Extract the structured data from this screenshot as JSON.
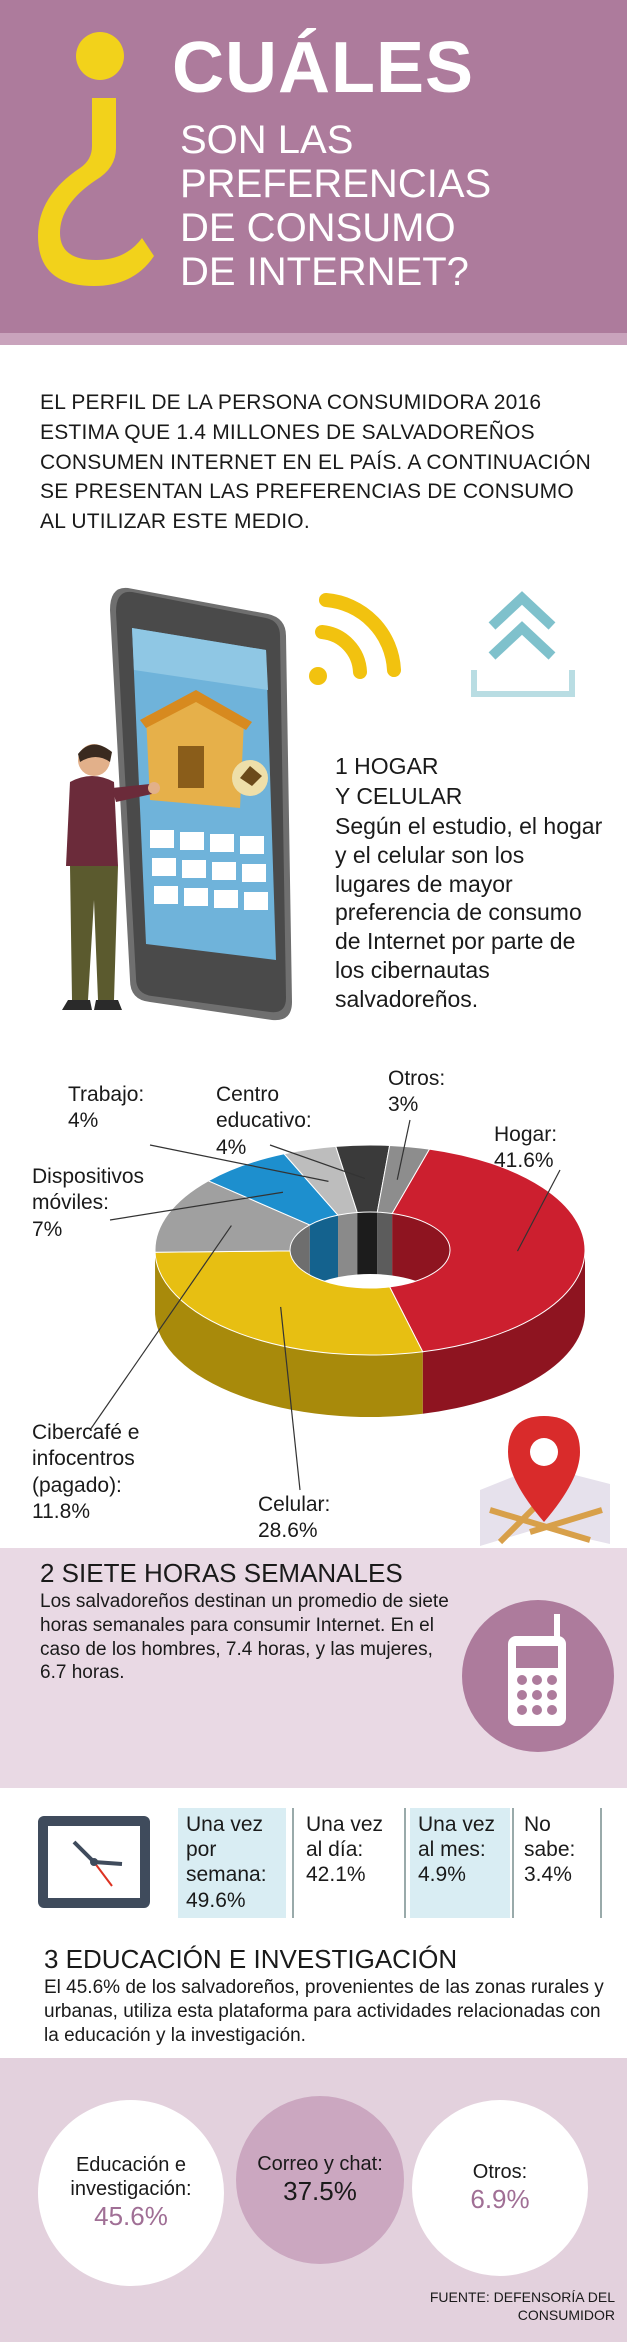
{
  "header": {
    "title_main": "CUÁLES",
    "title_lines": [
      "SON LAS",
      "PREFERENCIAS",
      "DE CONSUMO",
      "DE INTERNET?"
    ]
  },
  "intro": {
    "text": "EL PERFIL DE LA PERSONA CONSUMIDORA 2016 ESTIMA QUE 1.4 MILLONES DE SALVADOREÑOS CONSUMEN INTERNET EN EL PAÍS. A CONTINUACIÓN SE PRESENTAN LAS PREFERENCIAS DE CONSUMO AL UTILIZAR ESTE MEDIO."
  },
  "section1": {
    "title_lines": [
      "1 HOGAR",
      "Y CELULAR"
    ],
    "text": "Según el estudio, el hogar y el celular son los lugares de mayor preferencia de consumo de Internet por parte de los cibernautas salvadoreños."
  },
  "donut": {
    "slices": [
      {
        "label": "Hogar:",
        "value": "41.6%",
        "pct": 41.6,
        "color": "#cc1f2f",
        "side": "#8e1420"
      },
      {
        "label": "Celular:",
        "value": "28.6%",
        "pct": 28.6,
        "color": "#e7bf12",
        "side": "#a88a0b"
      },
      {
        "label": "Cibercafé e infocentros (pagado):",
        "value": "11.8%",
        "pct": 11.8,
        "color": "#a0a0a0",
        "side": "#6e6e6e"
      },
      {
        "label": "Dispositivos móviles:",
        "value": "7%",
        "pct": 7,
        "color": "#1d8fce",
        "side": "#14628e"
      },
      {
        "label": "Trabajo:",
        "value": "4%",
        "pct": 4,
        "color": "#bdbdbd",
        "side": "#8a8a8a"
      },
      {
        "label": "Centro educativo:",
        "value": "4%",
        "pct": 4,
        "color": "#3a3a3a",
        "side": "#1c1c1c"
      },
      {
        "label": "Otros:",
        "value": "3%",
        "pct": 3,
        "color": "#8d8d8d",
        "side": "#5c5c5c"
      }
    ]
  },
  "section2": {
    "title": "2 SIETE HORAS SEMANALES",
    "text": "Los salvadoreños destinan un promedio de siete horas semanales para consumir Internet. En el caso de los hombres, 7.4 horas, y las mujeres, 6.7 horas."
  },
  "frequency": [
    {
      "label": "Una vez por semana:",
      "value": "49.6%"
    },
    {
      "label": "Una vez al día:",
      "value": "42.1%"
    },
    {
      "label": "Una vez al mes:",
      "value": "4.9%"
    },
    {
      "label": "No sabe:",
      "value": "3.4%"
    }
  ],
  "section3": {
    "title": "3 EDUCACIÓN E INVESTIGACIÓN",
    "text": "El 45.6% de los salvadoreños, provenientes de las zonas rurales y urbanas, utiliza esta plataforma para actividades relacionadas con la educación y la investigación."
  },
  "uses": [
    {
      "label": "Educación e investigación:",
      "value": "45.6%"
    },
    {
      "label": "Correo y chat:",
      "value": "37.5%"
    },
    {
      "label": "Otros:",
      "value": "6.9%"
    }
  ],
  "source": "FUENTE: DEFENSORÍA DEL CONSUMIDOR",
  "colors": {
    "header": "#ad7b9c",
    "accent_yellow": "#f2d21b",
    "teal": "#7fc1cc",
    "value_purple": "#a06f95"
  }
}
